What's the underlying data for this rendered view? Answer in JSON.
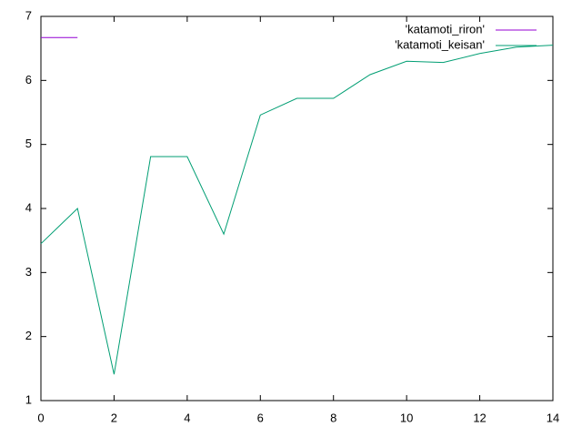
{
  "chart_data": {
    "type": "line",
    "series": [
      {
        "name": "'katamoti_riron'",
        "color": "#9400d3",
        "x": [
          0,
          1
        ],
        "values": [
          6.67,
          6.67
        ]
      },
      {
        "name": "'katamoti_keisan'",
        "color": "#009e73",
        "x": [
          0,
          1,
          2,
          3,
          4,
          5,
          6,
          7,
          8,
          9,
          10,
          11,
          12,
          13,
          14
        ],
        "values": [
          3.45,
          4.0,
          1.41,
          4.81,
          4.81,
          3.6,
          5.46,
          5.72,
          5.72,
          6.09,
          6.3,
          6.28,
          6.42,
          6.52,
          6.55
        ]
      }
    ],
    "xlim": [
      0,
      14
    ],
    "xticks": [
      0,
      2,
      4,
      6,
      8,
      10,
      12,
      14
    ],
    "ylim": [
      1,
      7
    ],
    "yticks": [
      1,
      2,
      3,
      4,
      5,
      6,
      7
    ],
    "legend": "top-right"
  }
}
